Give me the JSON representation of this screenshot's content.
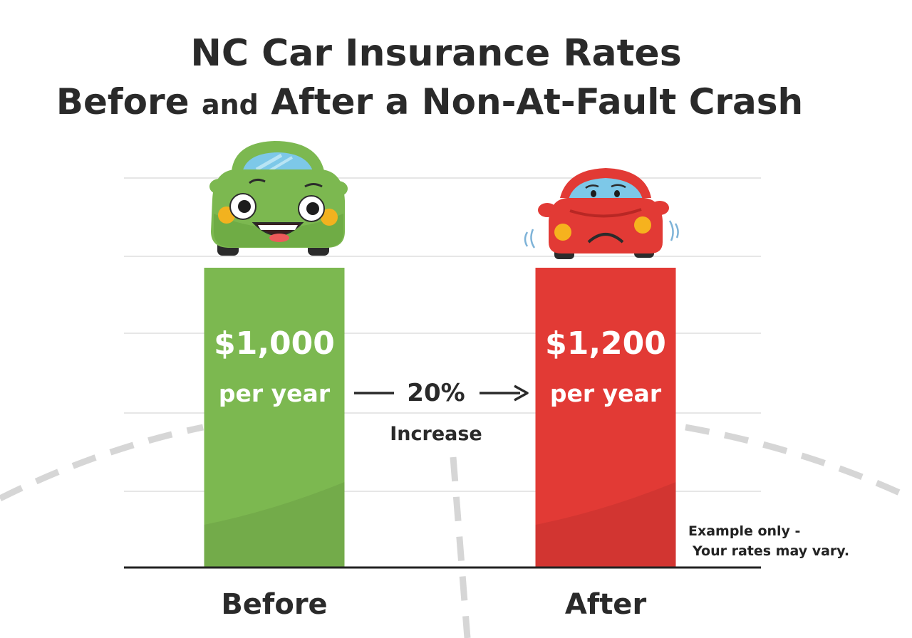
{
  "chart_data": {
    "type": "bar",
    "title_line1": "NC Car Insurance Rates",
    "title_line2_prefix": "Before",
    "title_line2_and": "and",
    "title_line2_rest": "After a Non-At-Fault Crash",
    "categories": [
      "Before",
      "After"
    ],
    "values": [
      1000,
      1200
    ],
    "value_labels": [
      "$1,000",
      "$1,200"
    ],
    "unit_label": "per year",
    "bar_colors": [
      "#7cb850",
      "#e23a35"
    ],
    "ylim": [
      0,
      1200
    ],
    "grid": true,
    "annotation": {
      "percent": "20%",
      "text": "Increase"
    },
    "footnote_line1": "Example only -",
    "footnote_line2": "Your rates may vary."
  },
  "icons": {
    "before": "happy-green-car-icon",
    "after": "sad-red-car-icon"
  }
}
